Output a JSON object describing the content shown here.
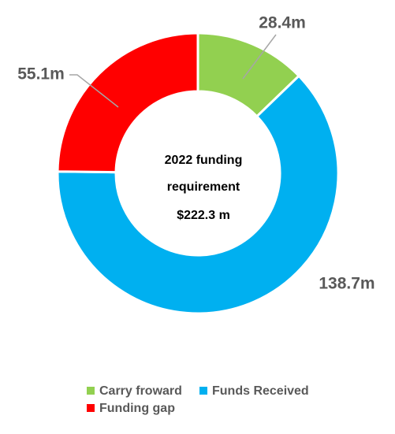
{
  "chart_data": {
    "type": "donut",
    "categories": [
      "Carry froward",
      "Funds Received",
      "Funding gap"
    ],
    "values": [
      28.4,
      138.7,
      55.1
    ],
    "value_labels": [
      "28.4m",
      "138.7m",
      "55.1m"
    ],
    "colors": [
      "#92d050",
      "#00b0f0",
      "#ff0000"
    ],
    "center_text": [
      "2022 funding",
      "requirement",
      "$222.3 m"
    ]
  }
}
